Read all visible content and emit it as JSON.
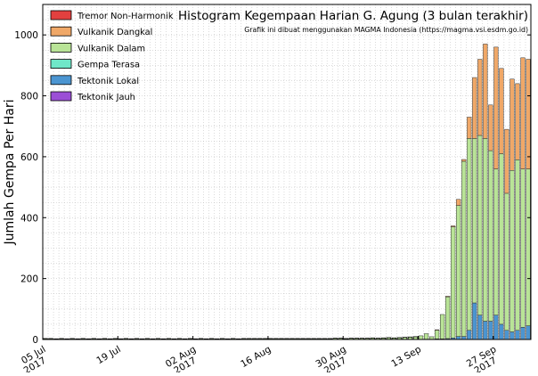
{
  "chart_data": {
    "type": "bar",
    "stacked": true,
    "title": "Histogram Kegempaan Harian G. Agung (3 bulan terakhir)",
    "subtitle": "Grafik ini dibuat menggunakan MAGMA Indonesia (https://magma.vsi.esdm.go.id)",
    "xlabel": "",
    "ylabel": "Jumlah Gempa Per Hari",
    "ylim": [
      0,
      1100
    ],
    "yticks": [
      0,
      200,
      400,
      600,
      800,
      1000
    ],
    "grid": true,
    "legend_position": "top-left",
    "x_start": "2017-07-05",
    "x_end": "2017-10-04",
    "xticks": [
      {
        "date": "2017-07-05",
        "line1": "05 Jul",
        "line2": "2017"
      },
      {
        "date": "2017-07-19",
        "line1": "19 Jul",
        "line2": ""
      },
      {
        "date": "2017-08-02",
        "line1": "02 Aug",
        "line2": "2017"
      },
      {
        "date": "2017-08-16",
        "line1": "16 Aug",
        "line2": ""
      },
      {
        "date": "2017-08-30",
        "line1": "30 Aug",
        "line2": "2017"
      },
      {
        "date": "2017-09-13",
        "line1": "13 Sep",
        "line2": ""
      },
      {
        "date": "2017-09-27",
        "line1": "27 Sep",
        "line2": "2017"
      }
    ],
    "series": [
      {
        "name": "Tremor Non-Harmonik",
        "color": "#e2403f"
      },
      {
        "name": "Vulkanik Dangkal",
        "color": "#f0a868"
      },
      {
        "name": "Vulkanik Dalam",
        "color": "#b9e497"
      },
      {
        "name": "Gempa Terasa",
        "color": "#6fe7c8"
      },
      {
        "name": "Tektonik Lokal",
        "color": "#4b95d1"
      },
      {
        "name": "Tektonik Jauh",
        "color": "#9b4fd6"
      }
    ],
    "baseline_days": {
      "from": "2017-07-05",
      "to": "2017-09-12",
      "counts": [
        3,
        3,
        2,
        3,
        2,
        3,
        2,
        3,
        2,
        3,
        2,
        3,
        2,
        3,
        2,
        3,
        2,
        3,
        2,
        3,
        2,
        3,
        2,
        3,
        2,
        3,
        2,
        3,
        2,
        3,
        2,
        3,
        2,
        3,
        2,
        3,
        2,
        3,
        3,
        3,
        3,
        3,
        3,
        3,
        3,
        3,
        3,
        3,
        3,
        3,
        3,
        3,
        3,
        3,
        4,
        4,
        3,
        4,
        4,
        4,
        4,
        5,
        4,
        5,
        6,
        5,
        6,
        7,
        8,
        9
      ],
      "series_index": 2
    },
    "bars": [
      {
        "date": "2017-09-13",
        "values": [
          0,
          0,
          12,
          0,
          0,
          0
        ]
      },
      {
        "date": "2017-09-14",
        "values": [
          0,
          0,
          18,
          0,
          1,
          0
        ]
      },
      {
        "date": "2017-09-15",
        "values": [
          0,
          0,
          8,
          0,
          1,
          0
        ]
      },
      {
        "date": "2017-09-16",
        "values": [
          0,
          2,
          28,
          0,
          2,
          0
        ]
      },
      {
        "date": "2017-09-17",
        "values": [
          0,
          0,
          80,
          0,
          2,
          0
        ]
      },
      {
        "date": "2017-09-18",
        "values": [
          0,
          2,
          137,
          0,
          3,
          0
        ]
      },
      {
        "date": "2017-09-19",
        "values": [
          0,
          3,
          365,
          0,
          5,
          0
        ]
      },
      {
        "date": "2017-09-20",
        "values": [
          0,
          20,
          430,
          0,
          10,
          0
        ]
      },
      {
        "date": "2017-09-21",
        "values": [
          0,
          6,
          575,
          0,
          10,
          0
        ]
      },
      {
        "date": "2017-09-22",
        "values": [
          0,
          70,
          630,
          0,
          30,
          0
        ]
      },
      {
        "date": "2017-09-23",
        "values": [
          0,
          200,
          540,
          0,
          120,
          0
        ]
      },
      {
        "date": "2017-09-24",
        "values": [
          0,
          250,
          590,
          0,
          80,
          0
        ]
      },
      {
        "date": "2017-09-25",
        "values": [
          0,
          310,
          600,
          0,
          60,
          0
        ]
      },
      {
        "date": "2017-09-26",
        "values": [
          0,
          150,
          560,
          0,
          60,
          0
        ]
      },
      {
        "date": "2017-09-27",
        "values": [
          0,
          400,
          480,
          0,
          80,
          0
        ]
      },
      {
        "date": "2017-09-28",
        "values": [
          0,
          280,
          560,
          0,
          50,
          0
        ]
      },
      {
        "date": "2017-09-29",
        "values": [
          0,
          210,
          450,
          0,
          30,
          0
        ]
      },
      {
        "date": "2017-09-30",
        "values": [
          0,
          300,
          530,
          0,
          25,
          0
        ]
      },
      {
        "date": "2017-10-01",
        "values": [
          0,
          250,
          560,
          0,
          30,
          0
        ]
      },
      {
        "date": "2017-10-02",
        "values": [
          0,
          365,
          520,
          0,
          40,
          0
        ]
      },
      {
        "date": "2017-10-03",
        "values": [
          0,
          360,
          515,
          0,
          45,
          0
        ]
      }
    ]
  }
}
